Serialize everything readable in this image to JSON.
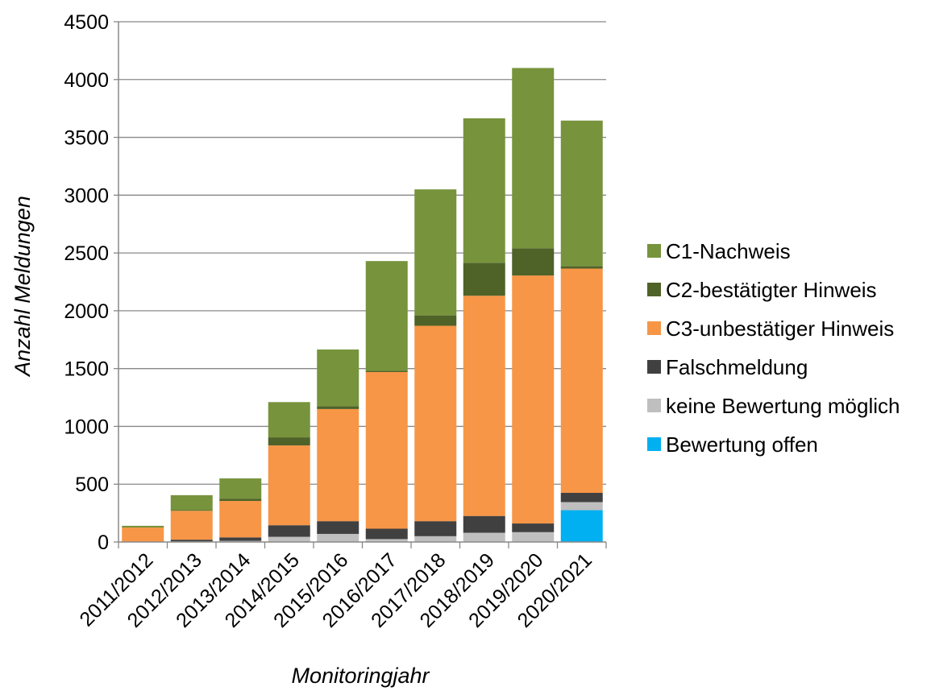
{
  "chart_data": {
    "type": "bar",
    "stacked": true,
    "title": "",
    "xlabel": "Monitoringjahr",
    "ylabel": "Anzahl Meldungen",
    "ylim": [
      0,
      4500
    ],
    "yticks": [
      0,
      500,
      1000,
      1500,
      2000,
      2500,
      3000,
      3500,
      4000,
      4500
    ],
    "grid": true,
    "legend_position": "right",
    "categories": [
      "2011/2012",
      "2012/2013",
      "2013/2014",
      "2014/2015",
      "2015/2016",
      "2016/2017",
      "2017/2018",
      "2018/2019",
      "2019/2020",
      "2020/2021"
    ],
    "series": [
      {
        "name": "Bewertung offen",
        "color": "#00B0F0",
        "values": [
          0,
          0,
          0,
          0,
          0,
          0,
          0,
          0,
          0,
          275
        ]
      },
      {
        "name": "keine Bewertung möglich",
        "color": "#BFBFBF",
        "values": [
          0,
          5,
          10,
          45,
          70,
          25,
          50,
          80,
          85,
          70
        ]
      },
      {
        "name": "Falschmeldung",
        "color": "#404040",
        "values": [
          0,
          15,
          30,
          100,
          110,
          90,
          130,
          145,
          75,
          80
        ]
      },
      {
        "name": "C3-unbestätiger Hinweis",
        "color": "#F79646",
        "values": [
          125,
          250,
          315,
          690,
          970,
          1355,
          1690,
          1905,
          2145,
          1940
        ]
      },
      {
        "name": "C2-bestätigter Hinweis",
        "color": "#4F6228",
        "values": [
          0,
          5,
          20,
          70,
          25,
          10,
          90,
          285,
          235,
          20
        ]
      },
      {
        "name": "C1-Nachweis",
        "color": "#77933C",
        "values": [
          15,
          130,
          175,
          305,
          490,
          950,
          1090,
          1250,
          1560,
          1260
        ]
      }
    ]
  }
}
